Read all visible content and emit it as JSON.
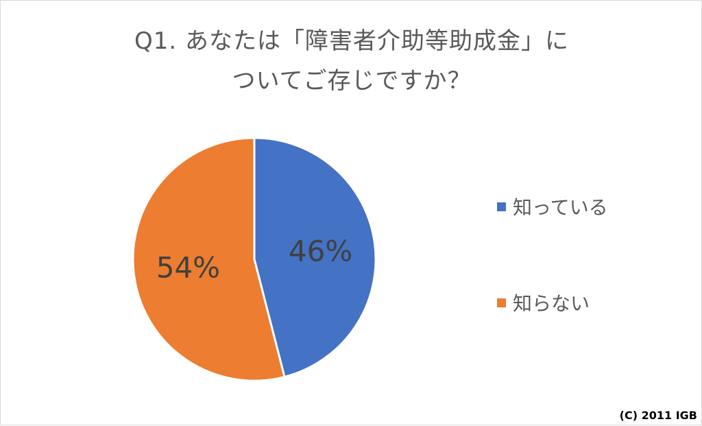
{
  "chart_data": {
    "type": "pie",
    "title_line1": "Q1. あなたは「障害者介助等助成金」に",
    "title_line2": "ついてご存じですか？",
    "series": [
      {
        "name": "知っている",
        "value": 46,
        "label": "46%",
        "color": "#4472C4"
      },
      {
        "name": "知らない",
        "value": 54,
        "label": "54%",
        "color": "#ED7D31"
      }
    ],
    "legend_position": "right"
  },
  "copyright": "(C) 2011 IGB"
}
